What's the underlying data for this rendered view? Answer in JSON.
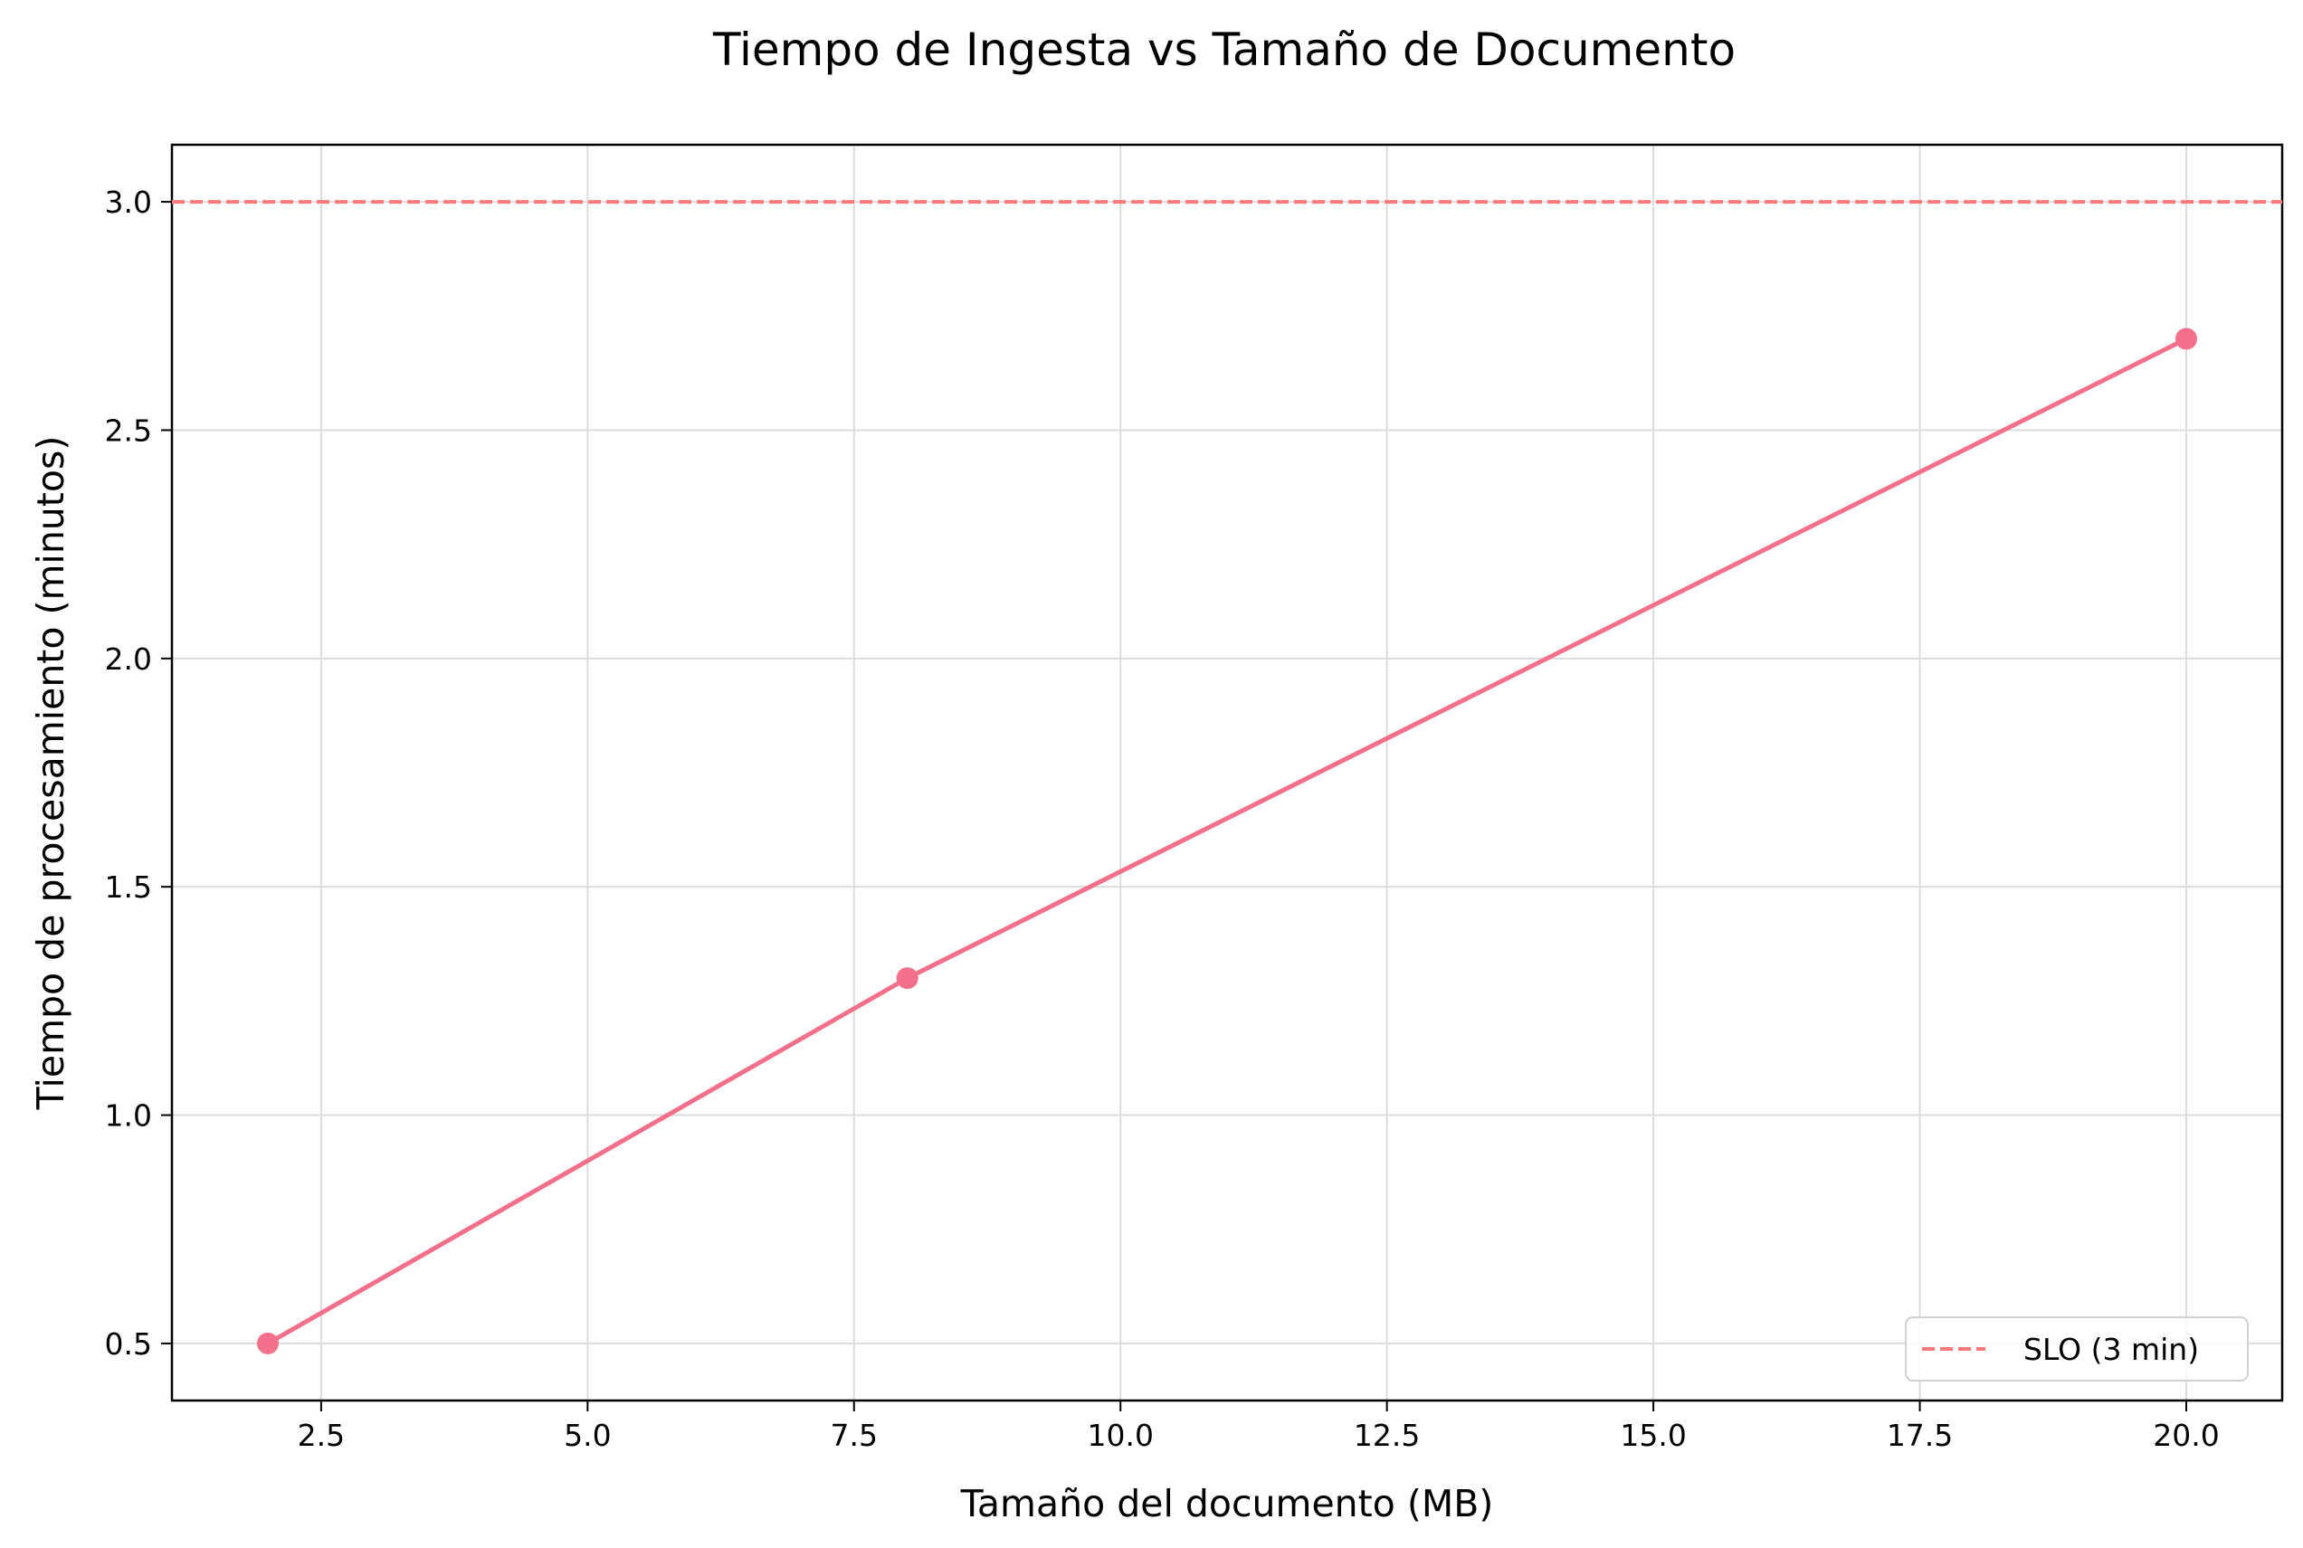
{
  "chart_data": {
    "type": "line",
    "title": "Tiempo de Ingesta vs Tamaño de Documento",
    "xlabel": "Tamaño del documento (MB)",
    "ylabel": "Tiempo de procesamiento (minutos)",
    "xlim": [
      1.1,
      20.9
    ],
    "ylim": [
      0.375,
      3.125
    ],
    "x_ticks": [
      2.5,
      5.0,
      7.5,
      10.0,
      12.5,
      15.0,
      17.5,
      20.0
    ],
    "x_tick_labels": [
      "2.5",
      "5.0",
      "7.5",
      "10.0",
      "12.5",
      "15.0",
      "17.5",
      "20.0"
    ],
    "y_ticks": [
      0.5,
      1.0,
      1.5,
      2.0,
      2.5,
      3.0
    ],
    "y_tick_labels": [
      "0.5",
      "1.0",
      "1.5",
      "2.0",
      "2.5",
      "3.0"
    ],
    "grid": true,
    "series": [
      {
        "x": [
          2,
          8,
          20
        ],
        "values": [
          0.5,
          1.3,
          2.7
        ],
        "color": "#f2708a",
        "marker": "circle"
      }
    ],
    "reference_lines": [
      {
        "name": "SLO (3 min)",
        "y": 3.0,
        "style": "dashed",
        "color": "#ff7b7b"
      }
    ],
    "legend": {
      "position": "lower-right",
      "entries": [
        "SLO (3 min)"
      ]
    }
  }
}
